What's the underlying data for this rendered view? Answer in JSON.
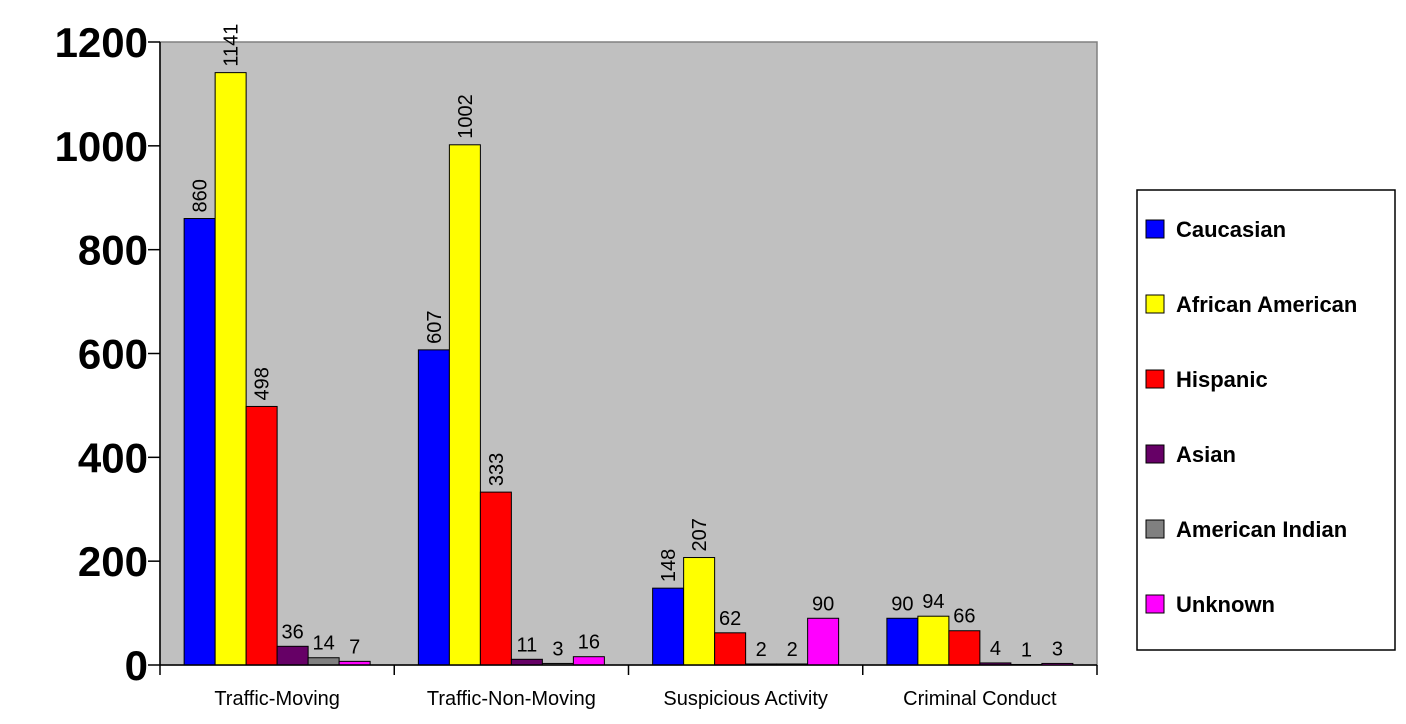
{
  "chart_data": {
    "type": "bar",
    "title": "",
    "xlabel": "",
    "ylabel": "",
    "ylim": [
      0,
      1200
    ],
    "yticks": [
      0,
      200,
      400,
      600,
      800,
      1000,
      1200
    ],
    "ytick_labels": [
      "0",
      "200",
      "400",
      "600",
      "800",
      "1000",
      "1200"
    ],
    "grid": false,
    "plot_background": "#c0c0c0",
    "legend_position": "right",
    "categories": [
      "Traffic-Moving",
      "Traffic-Non-Moving",
      "Suspicious Activity",
      "Criminal Conduct"
    ],
    "series": [
      {
        "name": "Caucasian",
        "color": "#0000ff",
        "values": [
          860,
          607,
          148,
          90
        ]
      },
      {
        "name": "African American",
        "color": "#ffff00",
        "values": [
          1141,
          1002,
          207,
          94
        ]
      },
      {
        "name": "Hispanic",
        "color": "#ff0000",
        "values": [
          498,
          333,
          62,
          66
        ]
      },
      {
        "name": "Asian",
        "color": "#660066",
        "values": [
          36,
          11,
          2,
          4
        ]
      },
      {
        "name": "American Indian",
        "color": "#808080",
        "values": [
          14,
          3,
          2,
          1
        ]
      },
      {
        "name": "Unknown",
        "color": "#ff00ff",
        "values": [
          7,
          16,
          90,
          3
        ]
      }
    ]
  }
}
